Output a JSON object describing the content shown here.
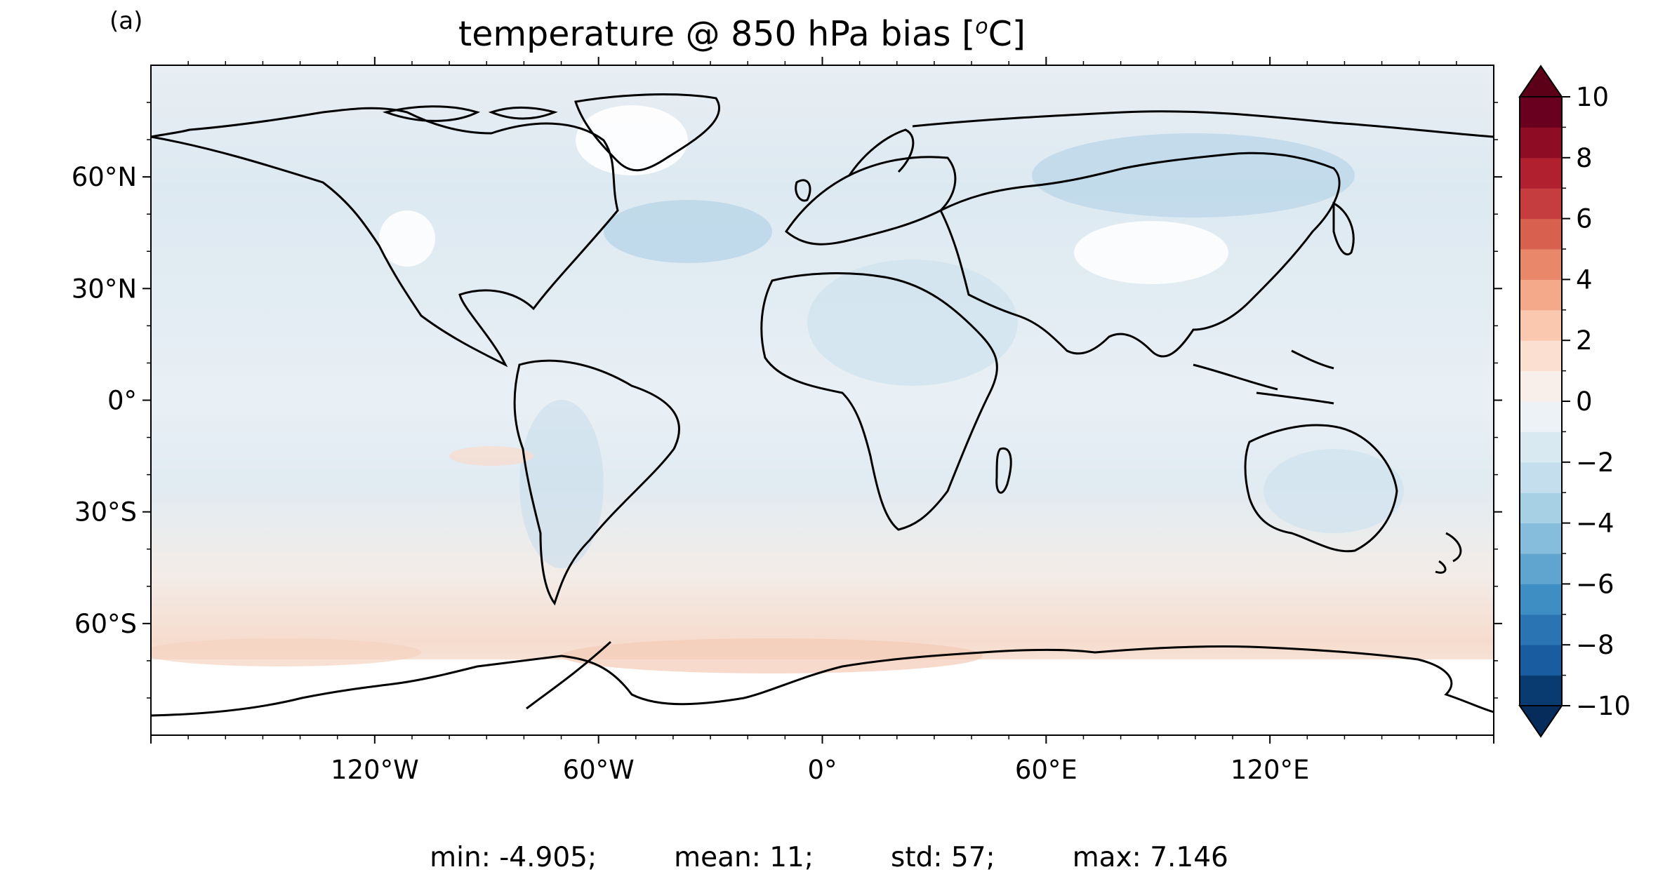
{
  "figure": {
    "panel_label": "(a)",
    "title_main": "temperature @ 850 hPa bias [",
    "title_sup": "o",
    "title_end": "C]"
  },
  "map": {
    "projection": "PlateCarree",
    "lat_ticks": [
      "60°N",
      "30°N",
      "0°",
      "30°S",
      "60°S"
    ],
    "lat_tick_values": [
      60,
      30,
      0,
      -30,
      -60
    ],
    "lon_ticks": [
      "120°W",
      "60°W",
      "0°",
      "60°E",
      "120°E"
    ],
    "lon_tick_values": [
      -120,
      -60,
      0,
      60,
      120
    ],
    "lat_range": [
      -90,
      90
    ],
    "lon_range": [
      -180,
      180
    ],
    "coastlines": true,
    "field": "temperature @ 850 hPa bias",
    "units": "°C"
  },
  "colorbar": {
    "cmap": "RdBu_r",
    "levels": [
      -10,
      -9,
      -8,
      -7,
      -6,
      -5,
      -4,
      -3,
      -2,
      -1,
      0,
      1,
      2,
      3,
      4,
      5,
      6,
      7,
      8,
      9,
      10
    ],
    "tick_labels": [
      "10",
      "8",
      "6",
      "4",
      "2",
      "0",
      "−2",
      "−4",
      "−6",
      "−8",
      "−10"
    ],
    "tick_values": [
      10,
      8,
      6,
      4,
      2,
      0,
      -2,
      -4,
      -6,
      -8,
      -10
    ],
    "extend": "both",
    "colors": [
      "#093a70",
      "#1a5ca0",
      "#2a74b4",
      "#3f8ec3",
      "#5fa5cf",
      "#86bcdc",
      "#a7d0e4",
      "#c4deed",
      "#d9e9f2",
      "#ecf2f6",
      "#f8efea",
      "#fbe0d2",
      "#f9c8ae",
      "#f4a98a",
      "#e8876a",
      "#d7604f",
      "#c63d3f",
      "#b0202f",
      "#8f0d24",
      "#6a0020"
    ],
    "under_color": "#052c5a",
    "over_color": "#5c0018"
  },
  "stats": {
    "min": "min: -4.905;",
    "mean": "mean: 11;",
    "std": "std: 57;",
    "max": "max: 7.146"
  }
}
